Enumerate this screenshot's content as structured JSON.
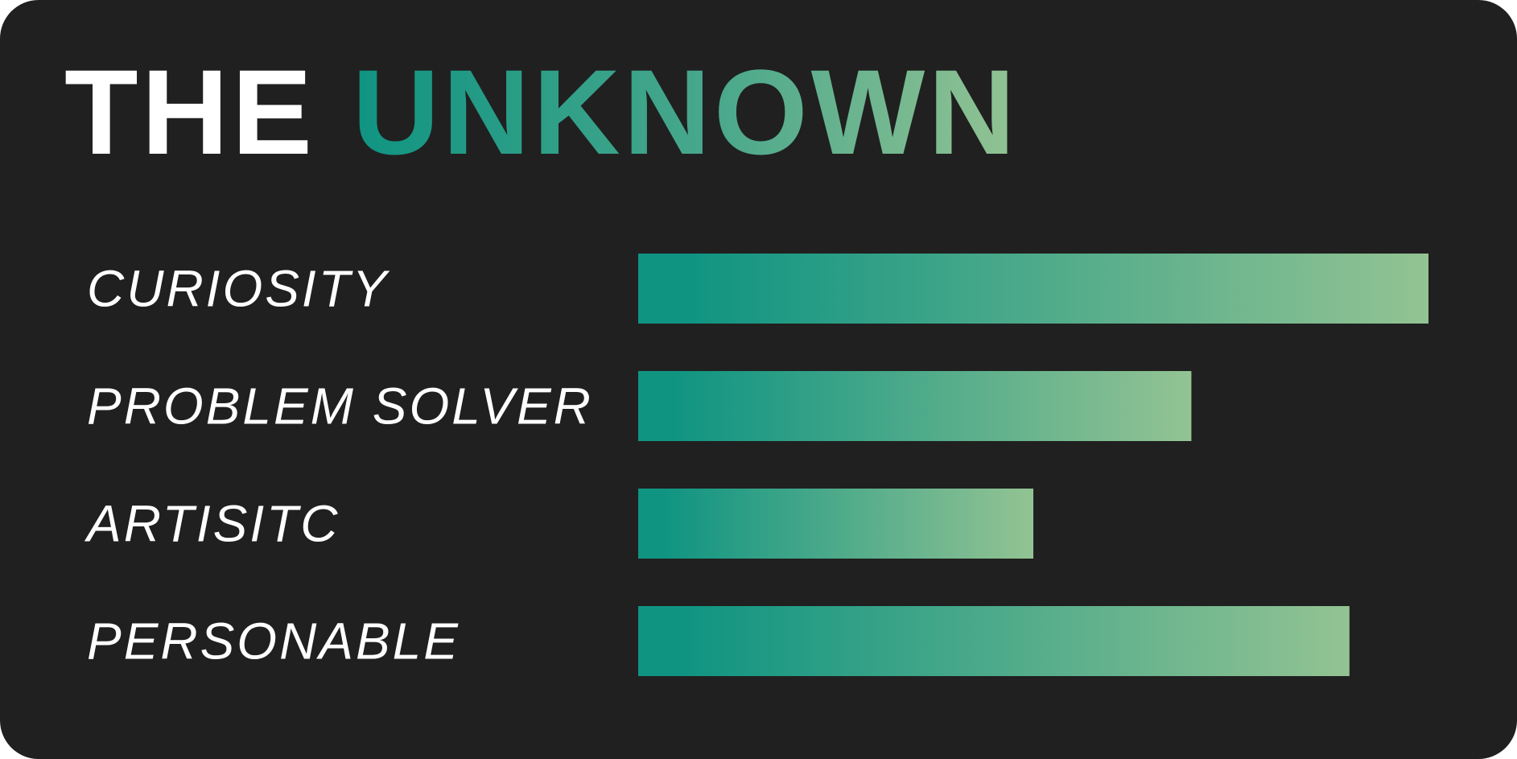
{
  "title": {
    "part1": "THE",
    "part2": "UNKNOWN"
  },
  "colors": {
    "background": "#202020",
    "text": "#ffffff",
    "gradient_start": "#0f9482",
    "gradient_end": "#93c393"
  },
  "chart_data": {
    "type": "bar",
    "orientation": "horizontal",
    "categories": [
      "CURIOSITY",
      "PROBLEM SOLVER",
      "ARTISITC",
      "PERSONABLE"
    ],
    "values": [
      100,
      70,
      50,
      90
    ],
    "xlim": [
      0,
      100
    ],
    "grid": false,
    "axes_visible": false
  }
}
